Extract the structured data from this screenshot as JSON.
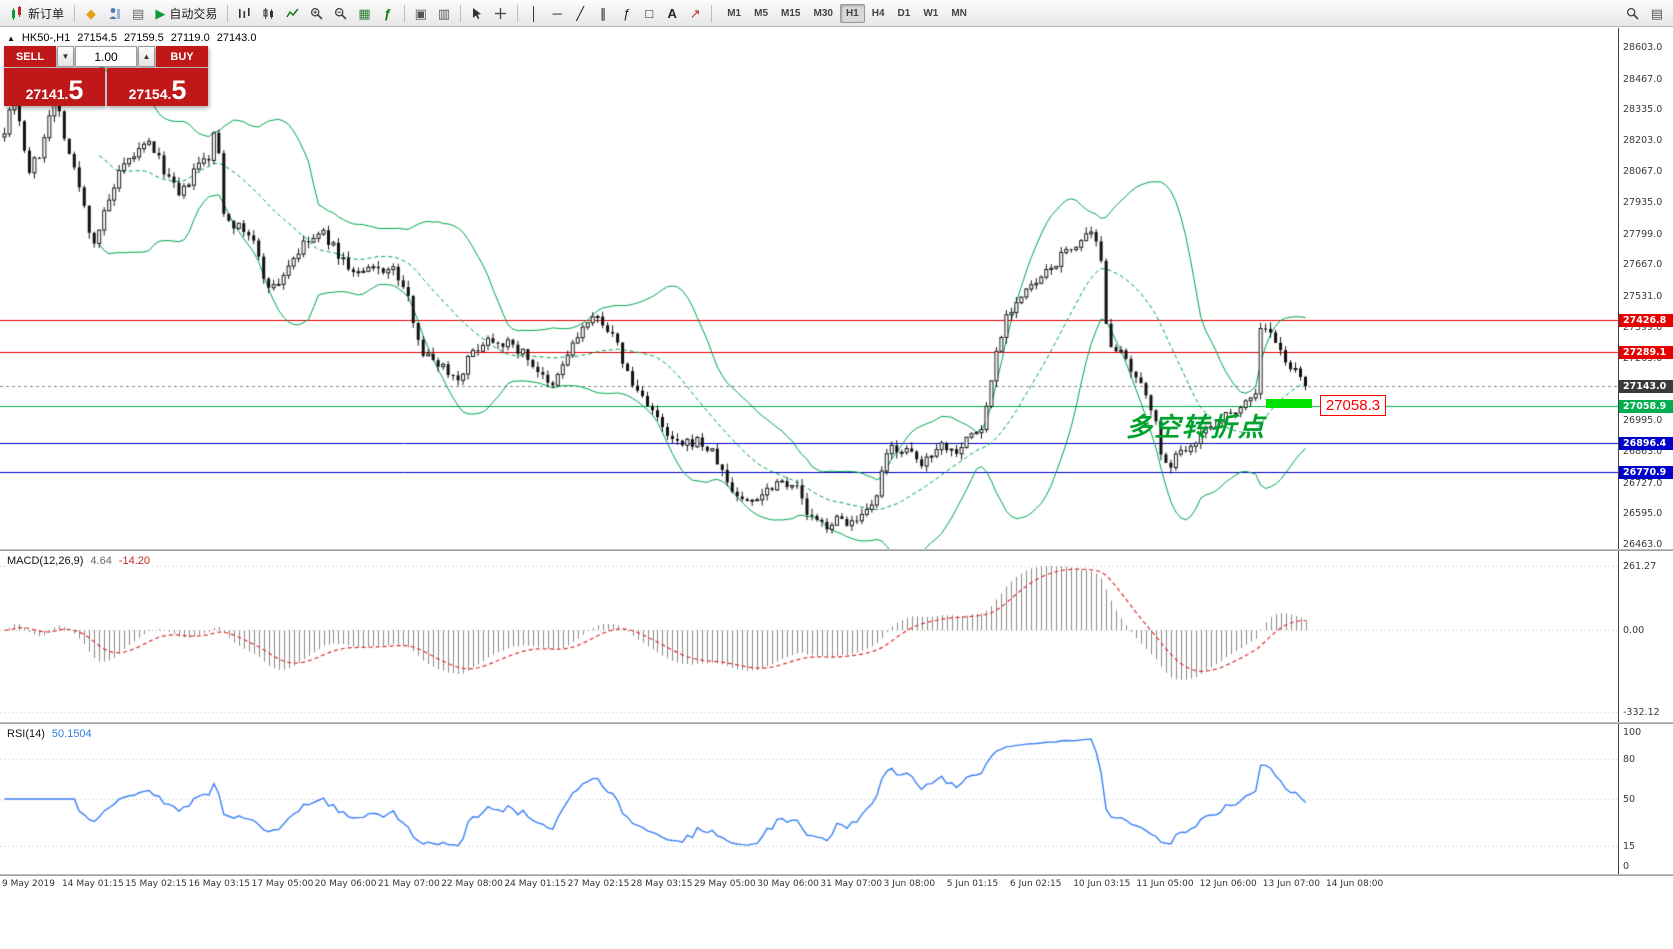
{
  "toolbar": {
    "new_order": "新订单",
    "autotrade": "自动交易",
    "timeframes": [
      "M1",
      "M5",
      "M15",
      "M30",
      "H1",
      "H4",
      "D1",
      "W1",
      "MN"
    ],
    "active_timeframe": "H1"
  },
  "symbol_header": {
    "symbol_period": "HK50-,H1",
    "open": "27154.5",
    "high": "27159.5",
    "low": "27119.0",
    "close": "27143.0"
  },
  "trade_panel": {
    "sell_label": "SELL",
    "buy_label": "BUY",
    "volume": "1.00",
    "sell_price": "27141.5",
    "sell_price_int": "27141.",
    "sell_price_big": "5",
    "buy_price": "27154.5",
    "buy_price_int": "27154.",
    "buy_price_big": "5",
    "button_color": "#c01818"
  },
  "annotations": {
    "turning_point": "多空转折点",
    "turning_point_color": "#00a22e",
    "price_callout": "27058.3",
    "callout_color": "#ff0000",
    "highlight_color": "#00e100"
  },
  "chart_data": [
    {
      "type": "candlestick",
      "symbol": "HK50-",
      "timeframe": "H1",
      "y_ticks": [
        "28603.0",
        "28467.0",
        "28335.0",
        "28203.0",
        "28067.0",
        "27935.0",
        "27799.0",
        "27667.0",
        "27531.0",
        "27399.0",
        "27263.0",
        "26995.0",
        "26863.0",
        "26727.0",
        "26595.0",
        "26463.0"
      ],
      "x_labels": [
        "9 May 2019",
        "14 May 01:15",
        "15 May 02:15",
        "16 May 03:15",
        "17 May 05:00",
        "20 May 06:00",
        "21 May 07:00",
        "22 May 08:00",
        "24 May 01:15",
        "27 May 02:15",
        "28 May 03:15",
        "29 May 05:00",
        "30 May 06:00",
        "31 May 07:00",
        "3 Jun 08:00",
        "5 Jun 01:15",
        "6 Jun 02:15",
        "10 Jun 03:15",
        "11 Jun 05:00",
        "12 Jun 06:00",
        "13 Jun 07:00",
        "14 Jun 08:00"
      ],
      "h_lines": [
        {
          "price": 27426.8,
          "label": "27426.8",
          "color": "#e60000"
        },
        {
          "price": 27289.1,
          "label": "27289.1",
          "color": "#e60000"
        },
        {
          "price": 27058.9,
          "label": "27058.9",
          "color": "#00b050"
        },
        {
          "price": 26896.4,
          "label": "26896.4",
          "color": "#0000cc"
        },
        {
          "price": 26770.9,
          "label": "26770.9",
          "color": "#0000cc"
        }
      ],
      "current_price": {
        "price": 27143.0,
        "label": "27143.0",
        "color": "#3a3a3a"
      },
      "bollinger": {
        "period": 20,
        "deviation": 2,
        "color": "#00a651"
      },
      "candles": {
        "count": 262,
        "up_color": "#ffffff",
        "down_color": "#111111",
        "path": [
          [
            0.0,
            28250
          ],
          [
            0.008,
            28420
          ],
          [
            0.018,
            28060
          ],
          [
            0.028,
            28150
          ],
          [
            0.038,
            28420
          ],
          [
            0.048,
            28180
          ],
          [
            0.058,
            27990
          ],
          [
            0.068,
            27750
          ],
          [
            0.078,
            27900
          ],
          [
            0.088,
            28050
          ],
          [
            0.1,
            28140
          ],
          [
            0.112,
            28190
          ],
          [
            0.125,
            28050
          ],
          [
            0.135,
            27950
          ],
          [
            0.148,
            28090
          ],
          [
            0.158,
            28130
          ],
          [
            0.163,
            28280
          ],
          [
            0.168,
            27900
          ],
          [
            0.178,
            27830
          ],
          [
            0.19,
            27790
          ],
          [
            0.2,
            27600
          ],
          [
            0.208,
            27560
          ],
          [
            0.22,
            27680
          ],
          [
            0.232,
            27760
          ],
          [
            0.245,
            27800
          ],
          [
            0.258,
            27700
          ],
          [
            0.27,
            27620
          ],
          [
            0.285,
            27650
          ],
          [
            0.3,
            27640
          ],
          [
            0.31,
            27520
          ],
          [
            0.322,
            27280
          ],
          [
            0.335,
            27240
          ],
          [
            0.348,
            27170
          ],
          [
            0.36,
            27290
          ],
          [
            0.372,
            27350
          ],
          [
            0.385,
            27330
          ],
          [
            0.398,
            27290
          ],
          [
            0.41,
            27210
          ],
          [
            0.42,
            27120
          ],
          [
            0.432,
            27270
          ],
          [
            0.445,
            27400
          ],
          [
            0.458,
            27440
          ],
          [
            0.47,
            27330
          ],
          [
            0.482,
            27150
          ],
          [
            0.495,
            27070
          ],
          [
            0.508,
            26930
          ],
          [
            0.52,
            26880
          ],
          [
            0.532,
            26910
          ],
          [
            0.545,
            26850
          ],
          [
            0.558,
            26700
          ],
          [
            0.57,
            26640
          ],
          [
            0.582,
            26680
          ],
          [
            0.595,
            26740
          ],
          [
            0.608,
            26720
          ],
          [
            0.618,
            26580
          ],
          [
            0.63,
            26540
          ],
          [
            0.642,
            26570
          ],
          [
            0.655,
            26550
          ],
          [
            0.668,
            26620
          ],
          [
            0.68,
            26880
          ],
          [
            0.692,
            26870
          ],
          [
            0.705,
            26800
          ],
          [
            0.718,
            26900
          ],
          [
            0.73,
            26860
          ],
          [
            0.742,
            26930
          ],
          [
            0.752,
            26960
          ],
          [
            0.762,
            27280
          ],
          [
            0.77,
            27450
          ],
          [
            0.78,
            27520
          ],
          [
            0.79,
            27570
          ],
          [
            0.8,
            27620
          ],
          [
            0.812,
            27700
          ],
          [
            0.825,
            27760
          ],
          [
            0.835,
            27790
          ],
          [
            0.842,
            27720
          ],
          [
            0.848,
            27350
          ],
          [
            0.858,
            27280
          ],
          [
            0.868,
            27180
          ],
          [
            0.878,
            27100
          ],
          [
            0.885,
            27010
          ],
          [
            0.89,
            26780
          ],
          [
            0.898,
            26820
          ],
          [
            0.908,
            26880
          ],
          [
            0.92,
            26940
          ],
          [
            0.932,
            26990
          ],
          [
            0.945,
            27040
          ],
          [
            0.955,
            27080
          ],
          [
            0.962,
            27120
          ],
          [
            0.966,
            27420
          ],
          [
            0.972,
            27380
          ],
          [
            0.98,
            27290
          ],
          [
            0.988,
            27230
          ],
          [
            0.995,
            27180
          ],
          [
            1.0,
            27143
          ]
        ]
      }
    },
    {
      "type": "macd",
      "label": "MACD(12,26,9)",
      "values_text": [
        "4.64",
        "-14.20"
      ],
      "params": {
        "fast": 12,
        "slow": 26,
        "signal": 9
      },
      "y_ticks": [
        "261.27",
        "0.00",
        "-332.12"
      ],
      "histogram_color": "#8c8c8c",
      "signal_color": "#e03030"
    },
    {
      "type": "rsi",
      "label": "RSI(14)",
      "value_text": "50.1504",
      "period": 14,
      "y_ticks": [
        "100",
        "80",
        "50",
        "15",
        "0"
      ],
      "line_color": "#3b82f6"
    }
  ]
}
